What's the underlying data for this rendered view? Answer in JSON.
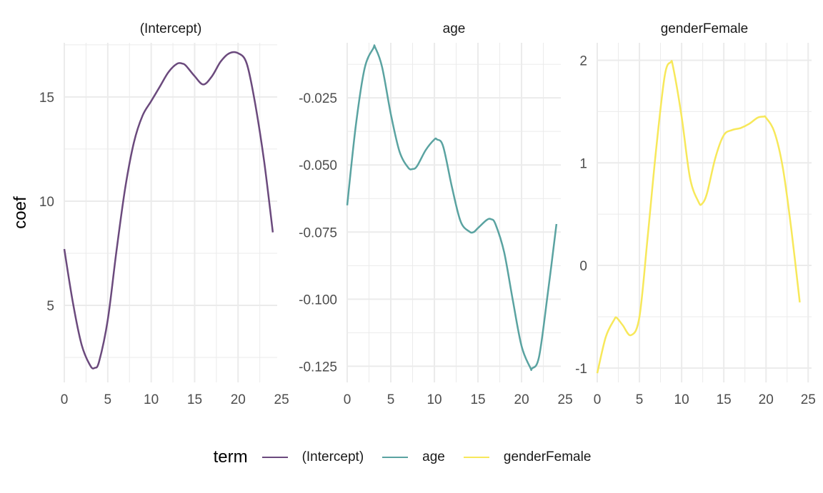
{
  "chart_data": {
    "type": "line",
    "ylabel": "coef",
    "legend": {
      "title": "term",
      "position": "bottom"
    },
    "grid": true,
    "facets": [
      {
        "title": "(Intercept)",
        "color": "#6b4a7d",
        "xlim": [
          0,
          24.5
        ],
        "ylim": [
          1.3,
          17.6
        ],
        "xticks": [
          0,
          5,
          10,
          15,
          20,
          25
        ],
        "yticks": [
          5,
          10,
          15
        ],
        "ytick_labels": [
          "5",
          "10",
          "15"
        ],
        "x": [
          0,
          1,
          2,
          3,
          3.5,
          4,
          5,
          6,
          7,
          8,
          9,
          10,
          11,
          12,
          13,
          13.6,
          14,
          15,
          16,
          17,
          18,
          19,
          20,
          21,
          22,
          23,
          24
        ],
        "y": [
          7.7,
          5.1,
          3.1,
          2.1,
          2.0,
          2.3,
          4.3,
          7.6,
          10.6,
          12.8,
          14.1,
          14.8,
          15.5,
          16.2,
          16.6,
          16.6,
          16.5,
          16.0,
          15.6,
          16.0,
          16.7,
          17.1,
          17.1,
          16.6,
          14.6,
          11.9,
          8.5
        ]
      },
      {
        "title": "age",
        "color": "#5aa3a1",
        "xlim": [
          0,
          24.5
        ],
        "ylim": [
          -0.131,
          -0.0045
        ],
        "xticks": [
          0,
          5,
          10,
          15,
          20,
          25
        ],
        "yticks": [
          -0.125,
          -0.1,
          -0.075,
          -0.05,
          -0.025
        ],
        "ytick_labels": [
          "-0.125",
          "-0.100",
          "-0.075",
          "-0.050",
          "-0.025"
        ],
        "x": [
          0,
          1,
          2,
          3,
          3.2,
          4,
          5,
          6,
          7,
          7.5,
          8,
          9,
          10,
          10.3,
          11,
          12,
          13,
          14,
          14.5,
          15,
          16,
          16.5,
          17,
          18,
          19,
          20,
          21,
          21.2,
          22,
          23,
          24
        ],
        "y": [
          -0.065,
          -0.035,
          -0.014,
          -0.0065,
          -0.0062,
          -0.0135,
          -0.031,
          -0.045,
          -0.051,
          -0.0515,
          -0.0505,
          -0.0445,
          -0.0405,
          -0.0405,
          -0.043,
          -0.058,
          -0.071,
          -0.0748,
          -0.075,
          -0.0735,
          -0.0705,
          -0.0702,
          -0.072,
          -0.0825,
          -0.1005,
          -0.1175,
          -0.1255,
          -0.1258,
          -0.1215,
          -0.098,
          -0.072
        ]
      },
      {
        "title": "genderFemale",
        "color": "#f7e85a",
        "xlim": [
          0,
          25.4
        ],
        "ylim": [
          -1.14,
          2.17
        ],
        "xticks": [
          0,
          5,
          10,
          15,
          20,
          25
        ],
        "yticks": [
          -1,
          0,
          1,
          2
        ],
        "ytick_labels": [
          "-1",
          "0",
          "1",
          "2"
        ],
        "x": [
          0,
          1,
          2,
          2.3,
          3,
          4,
          5,
          6,
          7,
          8,
          8.7,
          9,
          10,
          11,
          12,
          12.4,
          13,
          14,
          15,
          16,
          17,
          18,
          19,
          19.7,
          20,
          21,
          22,
          23,
          24
        ],
        "y": [
          -1.05,
          -0.7,
          -0.53,
          -0.51,
          -0.58,
          -0.68,
          -0.5,
          0.3,
          1.15,
          1.85,
          1.98,
          1.93,
          1.45,
          0.85,
          0.62,
          0.6,
          0.7,
          1.05,
          1.27,
          1.32,
          1.34,
          1.38,
          1.44,
          1.45,
          1.44,
          1.3,
          0.95,
          0.35,
          -0.36
        ]
      }
    ]
  }
}
